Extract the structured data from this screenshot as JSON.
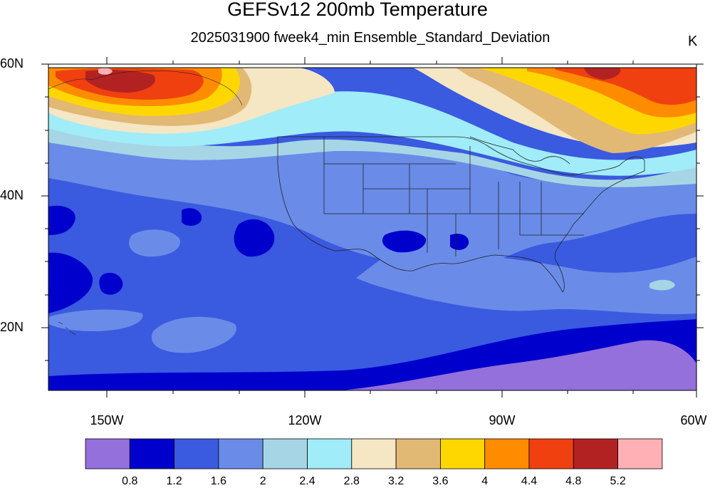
{
  "title": "GEFSv12 200mb Temperature",
  "subtitle": "2025031900 fweek4_min Ensemble_Standard_Deviation",
  "units": "K",
  "map": {
    "projection": "cylindrical-equidistant",
    "lon_range": [
      -160,
      -60
    ],
    "lat_range": [
      10,
      60
    ],
    "lat_labels": [
      "60N",
      "40N",
      "20N"
    ],
    "lon_labels": [
      "150W",
      "120W",
      "90W",
      "60W"
    ],
    "features": [
      "coastlines",
      "us-state-borders",
      "country-borders"
    ]
  },
  "colorbar": {
    "labels": [
      "0.8",
      "1.2",
      "1.6",
      "2",
      "2.4",
      "2.8",
      "3.2",
      "3.6",
      "4",
      "4.4",
      "4.8",
      "5.2"
    ],
    "colors": [
      "#9370DB",
      "#0000CD",
      "#3A5AE0",
      "#6A8CE8",
      "#A6D6E5",
      "#A0ECF8",
      "#F5E6C4",
      "#E2B875",
      "#FFD700",
      "#FF8C00",
      "#F0400F",
      "#B22222",
      "#FFB0B5"
    ]
  }
}
